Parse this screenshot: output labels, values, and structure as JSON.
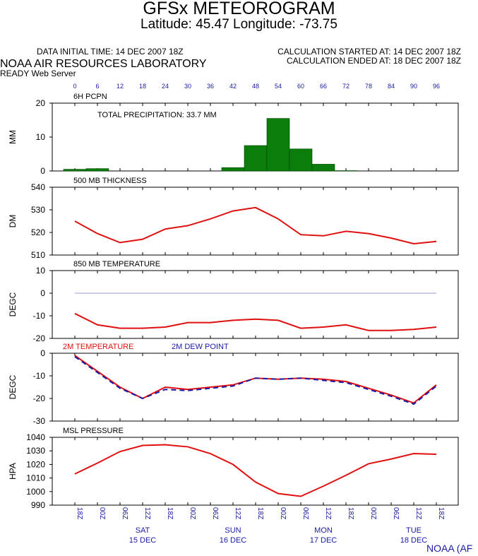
{
  "header": {
    "title": "GFSx METEOROGRAM",
    "subtitle": "Latitude: 45.47 Longitude: -73.75",
    "data_initial_time": "DATA INITIAL TIME: 14 DEC 2007 18Z",
    "calc_started": "CALCULATION STARTED AT: 14 DEC 2007 18Z",
    "calc_ended": "CALCULATION ENDED AT: 18 DEC 2007 18Z",
    "lab": "NOAA AIR RESOURCES LABORATORY",
    "server": "READY Web Server",
    "footer": "NOAA (AF"
  },
  "colors": {
    "bar": "#0a7d0a",
    "red": "#e01010",
    "blue": "#1a1aa6",
    "zero": "#9999cc"
  },
  "chart_data": [
    {
      "type": "bar",
      "title": "6H PCPN",
      "annotation": "TOTAL PRECIPITATION:  33.7 MM",
      "ylabel": "MM",
      "ylim": [
        0,
        20
      ],
      "yticks": [
        0,
        10,
        20
      ],
      "forecast_hours": [
        "0",
        "6",
        "12",
        "18",
        "24",
        "30",
        "36",
        "42",
        "48",
        "54",
        "60",
        "66",
        "72",
        "78",
        "84",
        "90",
        "96"
      ],
      "values": [
        0.5,
        0.7,
        0,
        0,
        0,
        0,
        0,
        1.0,
        7.5,
        15.5,
        6.5,
        2.0,
        0.1,
        0,
        0,
        0,
        0
      ]
    },
    {
      "type": "line",
      "title": "500 MB  THICKNESS",
      "ylabel": "DM",
      "ylim": [
        510,
        540
      ],
      "yticks": [
        510,
        520,
        530,
        540
      ],
      "values": [
        525,
        519.5,
        515.5,
        517,
        521.5,
        523,
        526,
        529.5,
        531,
        526,
        519,
        518.5,
        520.5,
        519.5,
        517.5,
        515,
        516
      ]
    },
    {
      "type": "line",
      "title": "850 MB  TEMPERATURE",
      "ylabel": "DEGC",
      "ylim": [
        -20,
        10
      ],
      "yticks": [
        -20,
        -10,
        0,
        10
      ],
      "values": [
        -9,
        -14,
        -15.5,
        -15.5,
        -15,
        -13,
        -13,
        -12,
        -11.5,
        -12,
        -15.5,
        -15,
        -14,
        -16.5,
        -16.5,
        -16,
        -15
      ]
    },
    {
      "type": "line",
      "title": "2M TEMPERATURE",
      "ylabel": "DEGC",
      "ylim": [
        -30,
        0
      ],
      "yticks": [
        -30,
        -20,
        -10,
        0
      ],
      "series": [
        {
          "name": "2M TEMPERATURE",
          "values": [
            -1,
            -8,
            -15,
            -20,
            -15,
            -16,
            -15,
            -14,
            -11,
            -11.5,
            -11,
            -11.5,
            -12.5,
            -15.5,
            -18.5,
            -22,
            -14
          ]
        },
        {
          "name": "2M  DEW POINT",
          "values": [
            -1.5,
            -8.5,
            -15.5,
            -20,
            -16,
            -16.5,
            -15.5,
            -14.5,
            -11,
            -11.5,
            -11,
            -12,
            -13,
            -16,
            -19,
            -22.5,
            -14.5
          ]
        }
      ]
    },
    {
      "type": "line",
      "title": "MSL PRESSURE",
      "ylabel": "HPA",
      "ylim": [
        990,
        1040
      ],
      "yticks": [
        990,
        1000,
        1010,
        1020,
        1030,
        1040
      ],
      "values": [
        1013,
        1021,
        1029.5,
        1034,
        1034.5,
        1033,
        1028,
        1020,
        1007,
        998.5,
        996.5,
        1004,
        1012,
        1020.5,
        1024,
        1028,
        1027.5
      ]
    }
  ],
  "x_axis": {
    "ticks": [
      "18Z",
      "00Z",
      "06Z",
      "12Z",
      "18Z",
      "00Z",
      "06Z",
      "12Z",
      "18Z",
      "00Z",
      "06Z",
      "12Z",
      "18Z",
      "00Z",
      "06Z",
      "12Z",
      "18Z"
    ],
    "days": [
      {
        "day": "SAT",
        "date": "15 DEC",
        "index": 3
      },
      {
        "day": "SUN",
        "date": "16 DEC",
        "index": 7
      },
      {
        "day": "MON",
        "date": "17 DEC",
        "index": 11
      },
      {
        "day": "TUE",
        "date": "18 DEC",
        "index": 15
      }
    ]
  }
}
